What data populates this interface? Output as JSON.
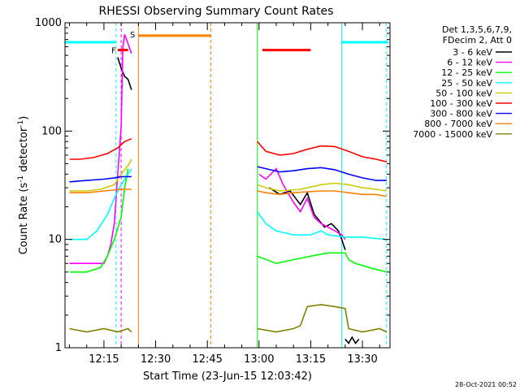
{
  "chart_data": {
    "type": "line",
    "title": "RHESSI Observing Summary Count Rates",
    "xlabel": "Start Time (23-Jun-15 12:03:42)",
    "ylabel_main": "Count Rate (s",
    "ylabel_sup1": "-1",
    "ylabel_mid": " detector",
    "ylabel_sup2": "-1",
    "ylabel_end": ")",
    "yscale": "log",
    "ylim": [
      1,
      1000
    ],
    "xlim_min": [
      3.7,
      98.0
    ],
    "yticks": [
      {
        "value": 1,
        "label": "1"
      },
      {
        "value": 10,
        "label": "10"
      },
      {
        "value": 100,
        "label": "100"
      },
      {
        "value": 1000,
        "label": "1000"
      }
    ],
    "xticks": [
      {
        "value": 15,
        "label": "12:15"
      },
      {
        "value": 30,
        "label": "12:30"
      },
      {
        "value": 45,
        "label": "12:45"
      },
      {
        "value": 60,
        "label": "13:00"
      },
      {
        "value": 75,
        "label": "13:15"
      },
      {
        "value": 90,
        "label": "13:30"
      }
    ],
    "timestamp": "28-Oct-2021 00:52",
    "legend_header": [
      "Det 1,3,5,6,7,9,",
      "FDecim 2, Att 0"
    ],
    "series": [
      {
        "name": "3 - 6 keV",
        "color": "#000000",
        "segments": [
          [
            [
              19,
              480
            ],
            [
              20,
              380
            ],
            [
              21,
              320
            ],
            [
              22,
              300
            ],
            [
              23,
              240
            ]
          ],
          [
            [
              63,
              30
            ],
            [
              66,
              26
            ],
            [
              69,
              28
            ],
            [
              72,
              21
            ],
            [
              74,
              27
            ],
            [
              76,
              17
            ],
            [
              79,
              13
            ],
            [
              81,
              14
            ],
            [
              83,
              12
            ],
            [
              84,
              10
            ],
            [
              85,
              8
            ]
          ],
          [
            [
              85,
              1.2
            ],
            [
              86,
              1.1
            ],
            [
              87,
              1.25
            ],
            [
              88,
              1.1
            ],
            [
              89,
              1.2
            ]
          ]
        ]
      },
      {
        "name": "6 - 12 keV",
        "color": "#ff00ff",
        "segments": [
          [
            [
              5,
              6
            ],
            [
              10,
              6
            ],
            [
              15,
              6
            ],
            [
              16,
              7
            ],
            [
              17,
              9
            ],
            [
              18,
              14
            ],
            [
              19,
              40
            ],
            [
              20,
              110
            ],
            [
              20.5,
              600
            ],
            [
              21,
              780
            ],
            [
              22,
              640
            ],
            [
              23,
              520
            ]
          ],
          [
            [
              60,
              40
            ],
            [
              62,
              36
            ],
            [
              65,
              45
            ],
            [
              67,
              32
            ],
            [
              70,
              22
            ],
            [
              72,
              18
            ],
            [
              74,
              24
            ],
            [
              76,
              16
            ],
            [
              78,
              14
            ],
            [
              80,
              13
            ],
            [
              82,
              12
            ],
            [
              84,
              11
            ],
            [
              85,
              10
            ]
          ]
        ]
      },
      {
        "name": "12 - 25 keV",
        "color": "#00ff00",
        "segments": [
          [
            [
              5,
              5
            ],
            [
              10,
              5
            ],
            [
              14,
              5.5
            ],
            [
              16,
              7
            ],
            [
              18,
              10
            ],
            [
              20,
              16
            ],
            [
              21,
              30
            ],
            [
              22,
              45
            ]
          ],
          [
            [
              59.5,
              7
            ],
            [
              65,
              6
            ],
            [
              70,
              6.5
            ],
            [
              75,
              7
            ],
            [
              80,
              7.5
            ],
            [
              85,
              7.5
            ],
            [
              86,
              6.5
            ],
            [
              88,
              6
            ],
            [
              92,
              5.5
            ],
            [
              97,
              5
            ]
          ]
        ]
      },
      {
        "name": "25 - 50 keV",
        "color": "#00ffff",
        "segments": [
          [
            [
              5,
              10
            ],
            [
              10,
              10
            ],
            [
              13,
              12
            ],
            [
              16,
              17
            ],
            [
              18,
              24
            ],
            [
              20,
              32
            ],
            [
              22,
              40
            ],
            [
              23,
              45
            ]
          ],
          [
            [
              59.5,
              18
            ],
            [
              62,
              14
            ],
            [
              65,
              12
            ],
            [
              70,
              11
            ],
            [
              75,
              11
            ],
            [
              78,
              12
            ],
            [
              80,
              11
            ],
            [
              85,
              10.5
            ],
            [
              90,
              10.5
            ],
            [
              97,
              10
            ]
          ]
        ]
      },
      {
        "name": "50 - 100 keV",
        "color": "#cccc00",
        "segments": [
          [
            [
              5,
              28
            ],
            [
              10,
              28
            ],
            [
              14,
              29
            ],
            [
              18,
              32
            ],
            [
              20,
              40
            ],
            [
              22,
              48
            ],
            [
              23,
              55
            ]
          ],
          [
            [
              59.5,
              32
            ],
            [
              62,
              30
            ],
            [
              66,
              28
            ],
            [
              72,
              29
            ],
            [
              78,
              32
            ],
            [
              82,
              33
            ],
            [
              86,
              32
            ],
            [
              90,
              30
            ],
            [
              94,
              29
            ],
            [
              97,
              28
            ]
          ]
        ]
      },
      {
        "name": "100 - 300 keV",
        "color": "#ff0000",
        "segments": [
          [
            [
              5,
              55
            ],
            [
              8,
              55
            ],
            [
              12,
              57
            ],
            [
              16,
              62
            ],
            [
              19,
              70
            ],
            [
              21,
              80
            ],
            [
              23,
              85
            ]
          ],
          [
            [
              59.5,
              80
            ],
            [
              62,
              65
            ],
            [
              66,
              60
            ],
            [
              70,
              62
            ],
            [
              74,
              68
            ],
            [
              78,
              73
            ],
            [
              82,
              72
            ],
            [
              86,
              65
            ],
            [
              90,
              58
            ],
            [
              94,
              55
            ],
            [
              97,
              52
            ]
          ]
        ]
      },
      {
        "name": "300 - 800 keV",
        "color": "#0000ff",
        "segments": [
          [
            [
              5,
              34
            ],
            [
              10,
              35
            ],
            [
              15,
              36
            ],
            [
              18,
              37
            ],
            [
              20,
              38
            ],
            [
              23,
              38
            ]
          ],
          [
            [
              59.5,
              47
            ],
            [
              62,
              45
            ],
            [
              66,
              42
            ],
            [
              70,
              43
            ],
            [
              74,
              45
            ],
            [
              78,
              46
            ],
            [
              82,
              44
            ],
            [
              86,
              40
            ],
            [
              90,
              37
            ],
            [
              94,
              35
            ],
            [
              97,
              35
            ]
          ]
        ]
      },
      {
        "name": "800 - 7000 keV",
        "color": "#ff8000",
        "segments": [
          [
            [
              5,
              27
            ],
            [
              10,
              27
            ],
            [
              15,
              28
            ],
            [
              20,
              29
            ],
            [
              23,
              29
            ]
          ],
          [
            [
              59.5,
              28
            ],
            [
              62,
              27
            ],
            [
              66,
              26
            ],
            [
              70,
              27
            ],
            [
              74,
              27.5
            ],
            [
              78,
              28
            ],
            [
              82,
              28
            ],
            [
              86,
              27
            ],
            [
              90,
              26
            ],
            [
              94,
              26
            ],
            [
              97,
              25
            ]
          ]
        ]
      },
      {
        "name": "7000 - 15000 keV",
        "color": "#808000",
        "segments": [
          [
            [
              5,
              1.5
            ],
            [
              10,
              1.4
            ],
            [
              15,
              1.5
            ],
            [
              19,
              1.4
            ],
            [
              22,
              1.5
            ],
            [
              23,
              1.4
            ]
          ],
          [
            [
              59.5,
              1.5
            ],
            [
              65,
              1.4
            ],
            [
              70,
              1.5
            ],
            [
              72,
              1.6
            ],
            [
              74,
              2.4
            ],
            [
              78,
              2.5
            ],
            [
              82,
              2.4
            ],
            [
              85,
              2.3
            ],
            [
              86,
              1.5
            ],
            [
              90,
              1.4
            ],
            [
              95,
              1.5
            ],
            [
              97,
              1.4
            ]
          ]
        ]
      }
    ],
    "annotations": {
      "orange_bar": {
        "label": "S",
        "color": "#ff8000",
        "x_range": [
          25,
          46
        ],
        "y": 760
      },
      "red_bar": {
        "x_range": [
          61,
          75
        ],
        "y": 560,
        "color": "#ff0000"
      },
      "flare_marker": {
        "label": "F",
        "x_range": [
          19,
          22
        ],
        "y": 560,
        "color": "#ff0000"
      },
      "cyan_bar_left": {
        "x_range": [
          3.7,
          18.5
        ],
        "y": 660,
        "color": "#00ffff"
      },
      "cyan_bar_right": {
        "x_range": [
          84,
          97.5
        ],
        "y": 660,
        "color": "#00ffff"
      },
      "vlines": [
        {
          "x": 18.5,
          "color": "#00ffff",
          "style": "dashed"
        },
        {
          "x": 20,
          "color": "#ff00ff",
          "style": "dashed"
        },
        {
          "x": 25,
          "color": "#ff8000",
          "style": "solid"
        },
        {
          "x": 46,
          "color": "#ff8000",
          "style": "dashed"
        },
        {
          "x": 84,
          "color": "#00ffff",
          "style": "solid"
        },
        {
          "x": 97,
          "color": "#00ffff",
          "style": "dashed"
        },
        {
          "x": 59.5,
          "color": "#00ff00",
          "style": "solid"
        }
      ]
    }
  }
}
